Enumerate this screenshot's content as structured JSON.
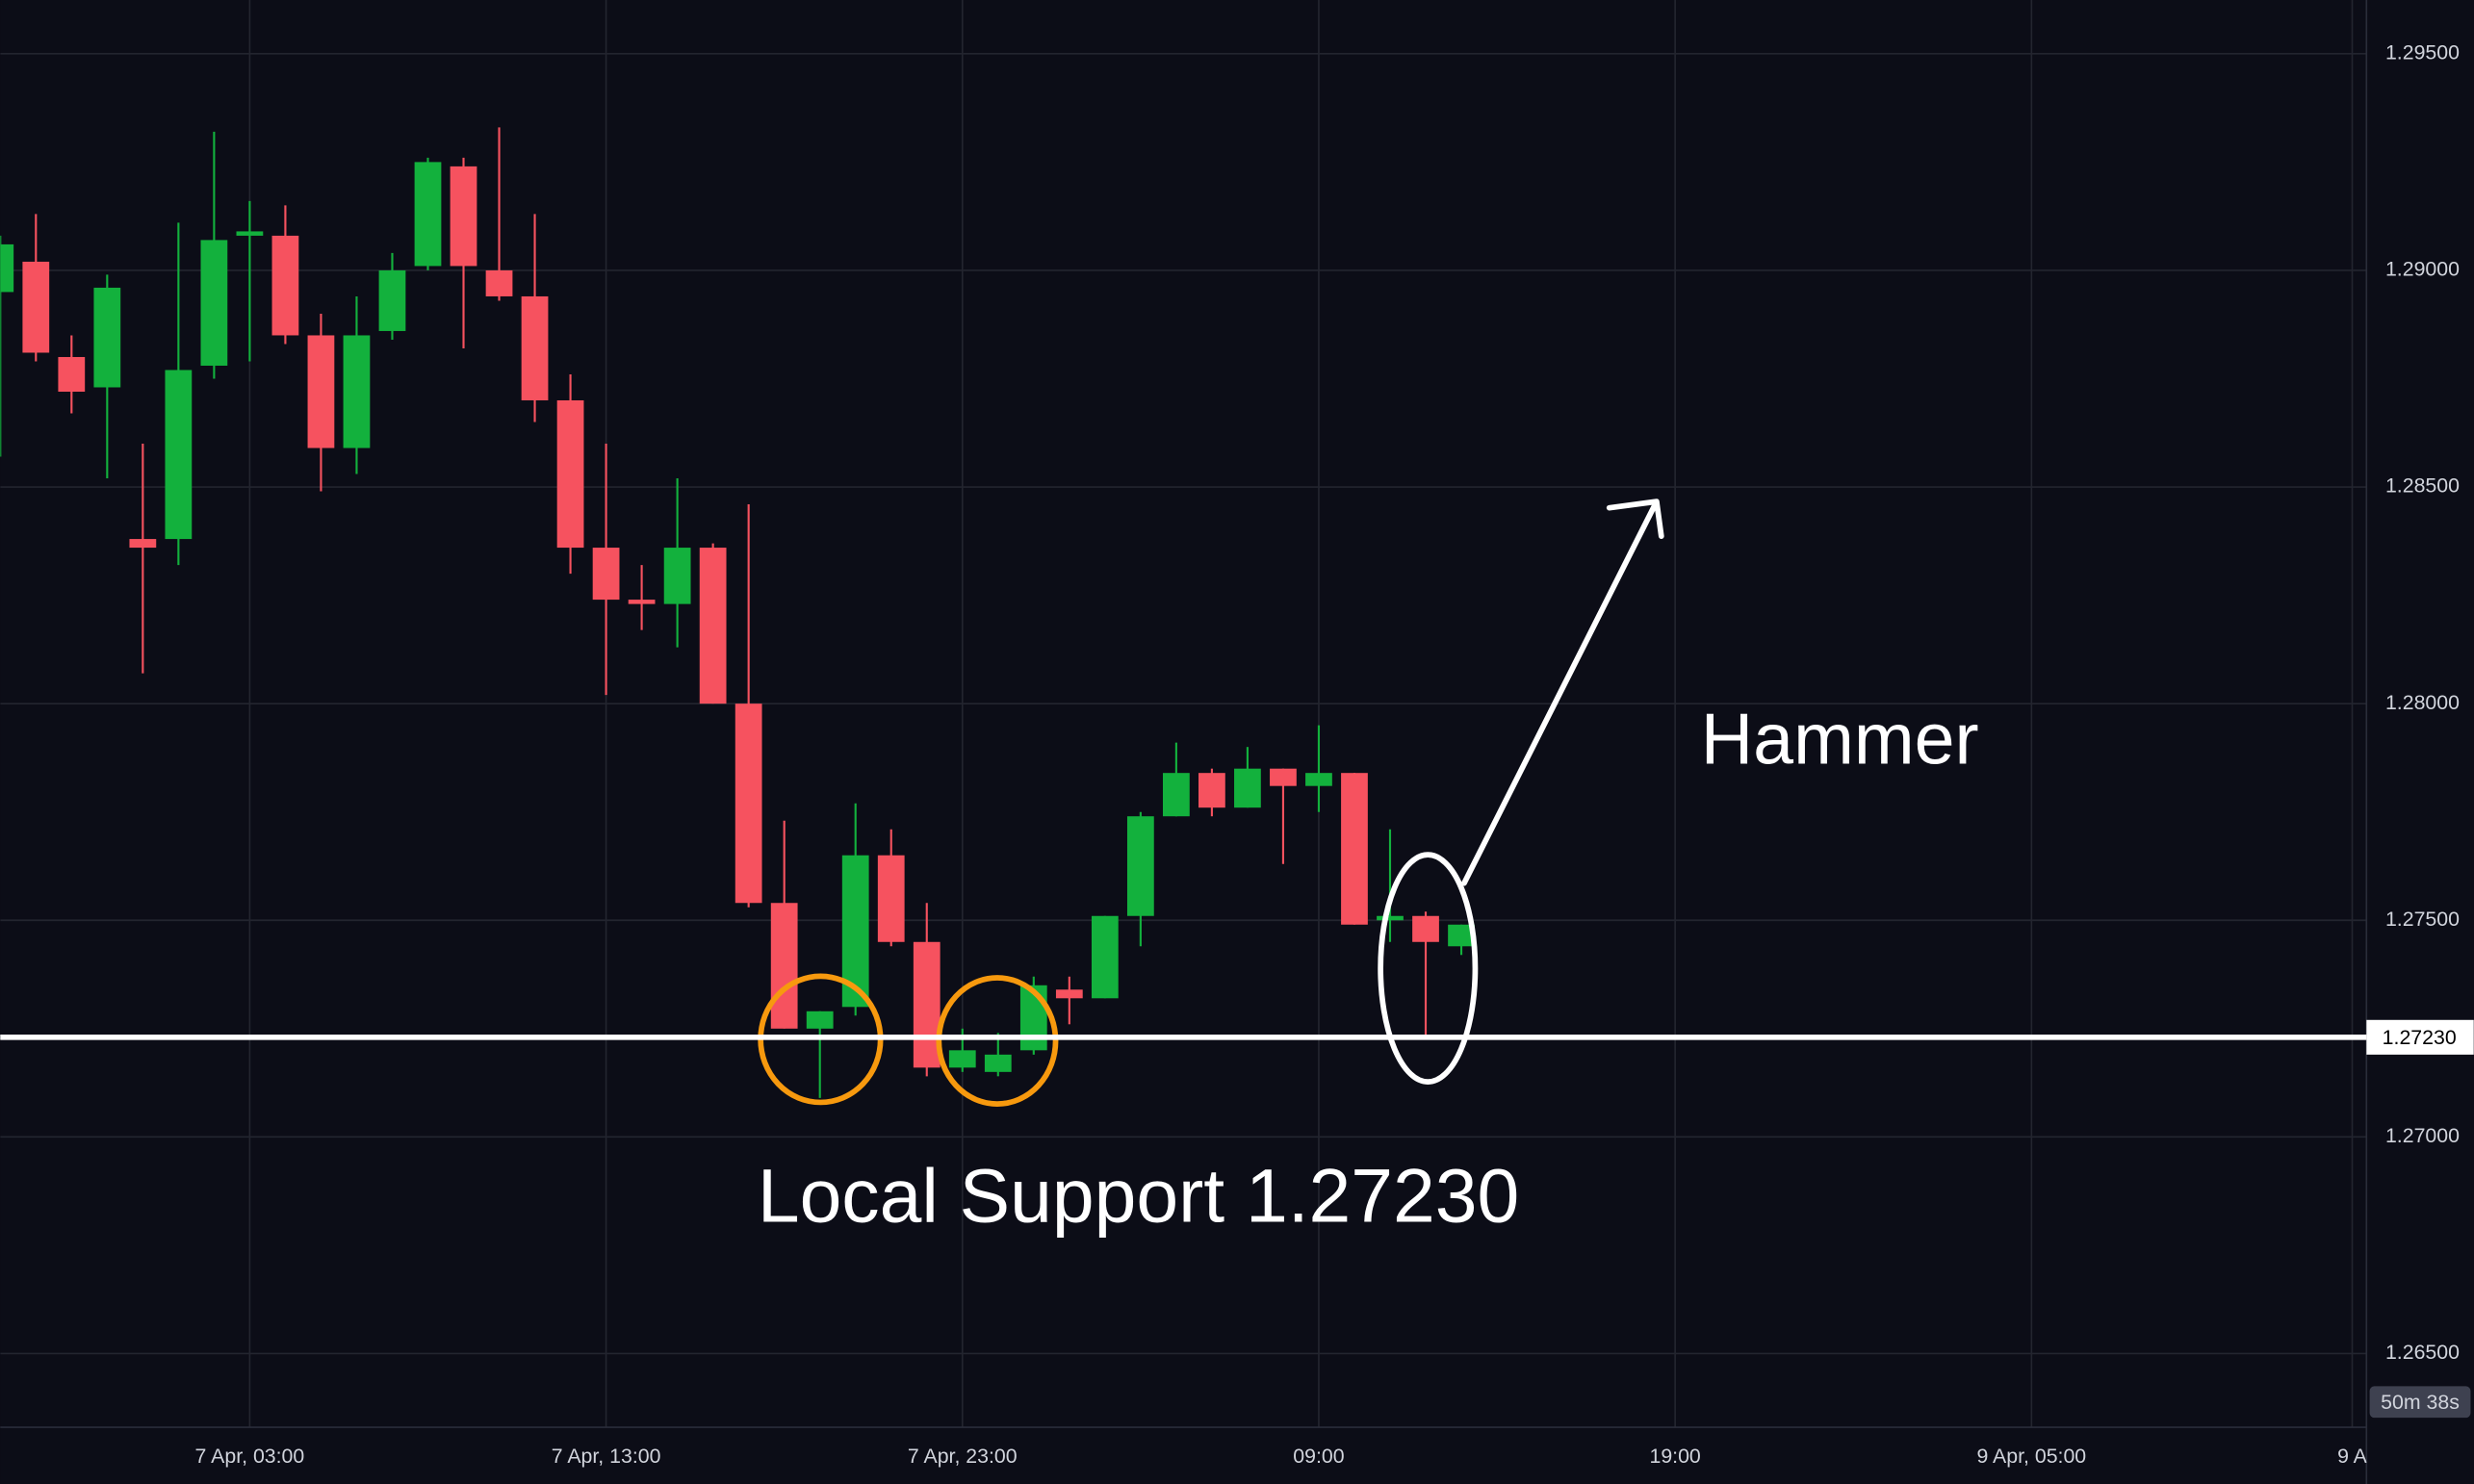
{
  "chart_data": {
    "type": "candlestick",
    "open": [
      1.2895,
      1.2902,
      1.288,
      1.2873,
      1.2838,
      1.2838,
      1.2878,
      1.2908,
      1.2908,
      1.2885,
      1.2859,
      1.2886,
      1.2901,
      1.2924,
      1.29,
      1.2894,
      1.287,
      1.2836,
      1.2824,
      1.2823,
      1.2836,
      1.28,
      1.2754,
      1.2725,
      1.273,
      1.2765,
      1.2745,
      1.2716,
      1.2715,
      1.272,
      1.2734,
      1.2732,
      1.2751,
      1.2774,
      1.2784,
      1.2776,
      1.2785,
      1.2781,
      1.2784,
      1.275,
      1.2751,
      1.2744
    ],
    "high": [
      1.2908,
      1.2913,
      1.2885,
      1.2899,
      1.286,
      1.2911,
      1.2932,
      1.2916,
      1.2915,
      1.289,
      1.2894,
      1.2904,
      1.2926,
      1.2926,
      1.2933,
      1.2913,
      1.2876,
      1.286,
      1.2832,
      1.2852,
      1.2837,
      1.2846,
      1.2773,
      1.2729,
      1.2777,
      1.2771,
      1.2754,
      1.2725,
      1.2724,
      1.2737,
      1.2737,
      1.2751,
      1.2775,
      1.2791,
      1.2785,
      1.279,
      1.2785,
      1.2795,
      1.2784,
      1.2771,
      1.2752,
      1.2749
    ],
    "low": [
      1.2857,
      1.2879,
      1.2867,
      1.2852,
      1.2807,
      1.2832,
      1.2875,
      1.2879,
      1.2883,
      1.2849,
      1.2853,
      1.2884,
      1.29,
      1.2882,
      1.2893,
      1.2865,
      1.283,
      1.2802,
      1.2817,
      1.2813,
      1.28,
      1.2753,
      1.2725,
      1.2709,
      1.2728,
      1.2744,
      1.2714,
      1.2715,
      1.2714,
      1.2719,
      1.2726,
      1.2732,
      1.2744,
      1.2774,
      1.2774,
      1.2776,
      1.2763,
      1.2775,
      1.2749,
      1.2745,
      1.2723,
      1.2742
    ],
    "close": [
      1.2906,
      1.2881,
      1.2872,
      1.2896,
      1.2836,
      1.2877,
      1.2907,
      1.2909,
      1.2885,
      1.2859,
      1.2885,
      1.29,
      1.2925,
      1.2901,
      1.2894,
      1.287,
      1.2836,
      1.2824,
      1.2823,
      1.2836,
      1.28,
      1.2754,
      1.2725,
      1.2729,
      1.2765,
      1.2745,
      1.2716,
      1.272,
      1.2719,
      1.2735,
      1.2732,
      1.2751,
      1.2774,
      1.2784,
      1.2776,
      1.2785,
      1.2781,
      1.2784,
      1.2749,
      1.2751,
      1.2745,
      1.2749
    ],
    "up_color": "#13b13d",
    "down_color": "#f6525f",
    "xlim": [
      0,
      66.4
    ],
    "xticks": [
      {
        "value": 7,
        "label": "7 Apr, 03:00"
      },
      {
        "value": 17,
        "label": "7 Apr, 13:00"
      },
      {
        "value": 27,
        "label": "7 Apr, 23:00"
      },
      {
        "value": 37,
        "label": "09:00"
      },
      {
        "value": 47,
        "label": "19:00"
      },
      {
        "value": 57,
        "label": "9 Apr, 05:00"
      },
      {
        "value": 66,
        "label": "9 A"
      }
    ],
    "ylim": [
      1.2633,
      1.29624
    ],
    "yticks": [
      {
        "value": 1.265,
        "label": "1.26500"
      },
      {
        "value": 1.27,
        "label": "1.27000"
      },
      {
        "value": 1.275,
        "label": "1.27500"
      },
      {
        "value": 1.28,
        "label": "1.28000"
      },
      {
        "value": 1.285,
        "label": "1.28500"
      },
      {
        "value": 1.29,
        "label": "1.29000"
      },
      {
        "value": 1.295,
        "label": "1.29500"
      }
    ],
    "grid": true,
    "support": {
      "value": 1.2723,
      "label": "1.27230"
    },
    "annotations": [
      "Hammer",
      "Local Support 1.27230"
    ],
    "timer": "50m 38s"
  }
}
